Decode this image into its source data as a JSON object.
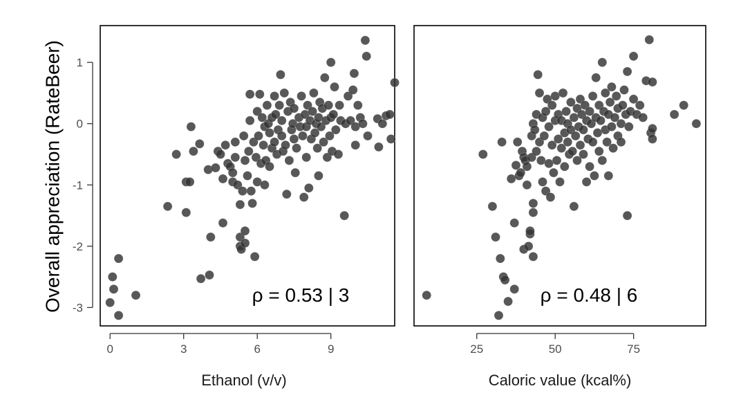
{
  "chart_data": [
    {
      "type": "scatter",
      "xlabel": "Ethanol (v/v)",
      "ylabel": "Overall appreciation (RateBeer)",
      "annotation": "ρ = 0.53 | 3",
      "xlim": [
        -0.4,
        11.6
      ],
      "ylim": [
        -3.3,
        1.6
      ],
      "xticks": [
        0,
        3,
        6,
        9
      ],
      "xtick_labels": [
        "0",
        "3",
        "6",
        "9"
      ],
      "yticks": [
        -3,
        -2,
        -1,
        0,
        1
      ],
      "ytick_labels": [
        "-3",
        "-2",
        "-1",
        "0",
        "1"
      ],
      "grid": false,
      "points": [
        [
          0.0,
          -2.92
        ],
        [
          0.1,
          -2.5
        ],
        [
          0.15,
          -2.7
        ],
        [
          0.35,
          -3.13
        ],
        [
          0.35,
          -2.2
        ],
        [
          1.05,
          -2.8
        ],
        [
          2.35,
          -1.35
        ],
        [
          2.7,
          -0.5
        ],
        [
          3.1,
          -0.95
        ],
        [
          3.1,
          -1.45
        ],
        [
          3.25,
          -0.95
        ],
        [
          3.3,
          -0.05
        ],
        [
          3.4,
          -0.45
        ],
        [
          3.65,
          -0.33
        ],
        [
          3.7,
          -2.53
        ],
        [
          4.0,
          -0.75
        ],
        [
          4.1,
          -1.85
        ],
        [
          4.05,
          -2.47
        ],
        [
          4.3,
          -0.72
        ],
        [
          4.4,
          -0.45
        ],
        [
          4.5,
          -0.5
        ],
        [
          4.6,
          -0.9
        ],
        [
          4.6,
          -1.62
        ],
        [
          4.7,
          -0.35
        ],
        [
          4.8,
          -0.65
        ],
        [
          4.9,
          -0.7
        ],
        [
          5.0,
          -0.8
        ],
        [
          5.0,
          -0.95
        ],
        [
          5.1,
          -0.55
        ],
        [
          5.1,
          -0.3
        ],
        [
          5.2,
          -1.0
        ],
        [
          5.3,
          -1.32
        ],
        [
          5.3,
          -1.85
        ],
        [
          5.3,
          -2.0
        ],
        [
          5.35,
          -2.05
        ],
        [
          5.4,
          -1.1
        ],
        [
          5.45,
          -0.2
        ],
        [
          5.5,
          -0.6
        ],
        [
          5.5,
          -1.75
        ],
        [
          5.5,
          -1.95
        ],
        [
          5.6,
          -0.85
        ],
        [
          5.65,
          -0.45
        ],
        [
          5.7,
          0.48
        ],
        [
          5.7,
          0.05
        ],
        [
          5.75,
          -1.1
        ],
        [
          5.8,
          -1.3
        ],
        [
          5.85,
          -0.3
        ],
        [
          5.9,
          -2.17
        ],
        [
          5.95,
          -0.55
        ],
        [
          6.0,
          0.2
        ],
        [
          6.0,
          -0.95
        ],
        [
          6.05,
          -0.2
        ],
        [
          6.1,
          0.48
        ],
        [
          6.15,
          -0.65
        ],
        [
          6.2,
          0.1
        ],
        [
          6.25,
          -0.35
        ],
        [
          6.3,
          -1.0
        ],
        [
          6.3,
          -0.05
        ],
        [
          6.35,
          -0.6
        ],
        [
          6.4,
          0.3
        ],
        [
          6.45,
          0.0
        ],
        [
          6.5,
          -0.15
        ],
        [
          6.5,
          -0.7
        ],
        [
          6.6,
          0.1
        ],
        [
          6.6,
          -0.4
        ],
        [
          6.7,
          0.45
        ],
        [
          6.7,
          -0.3
        ],
        [
          6.75,
          0.15
        ],
        [
          6.8,
          -0.5
        ],
        [
          6.85,
          -0.1
        ],
        [
          6.9,
          0.3
        ],
        [
          6.95,
          0.8
        ],
        [
          7.0,
          0.05
        ],
        [
          7.0,
          -0.2
        ],
        [
          7.05,
          -0.45
        ],
        [
          7.1,
          0.5
        ],
        [
          7.15,
          -0.35
        ],
        [
          7.2,
          -1.15
        ],
        [
          7.25,
          0.2
        ],
        [
          7.3,
          -0.6
        ],
        [
          7.35,
          0.35
        ],
        [
          7.4,
          -0.1
        ],
        [
          7.45,
          0.0
        ],
        [
          7.5,
          -0.25
        ],
        [
          7.5,
          0.25
        ],
        [
          7.55,
          -0.8
        ],
        [
          7.6,
          -0.4
        ],
        [
          7.7,
          0.1
        ],
        [
          7.75,
          -0.05
        ],
        [
          7.8,
          0.45
        ],
        [
          7.85,
          -0.2
        ],
        [
          7.9,
          -1.2
        ],
        [
          7.95,
          0.15
        ],
        [
          8.0,
          -0.55
        ],
        [
          8.0,
          -0.05
        ],
        [
          8.05,
          0.3
        ],
        [
          8.1,
          -1.05
        ],
        [
          8.15,
          0.05
        ],
        [
          8.2,
          -0.25
        ],
        [
          8.25,
          0.2
        ],
        [
          8.3,
          0.5
        ],
        [
          8.35,
          -0.15
        ],
        [
          8.4,
          0.0
        ],
        [
          8.45,
          -0.4
        ],
        [
          8.5,
          -0.85
        ],
        [
          8.5,
          0.1
        ],
        [
          8.55,
          0.35
        ],
        [
          8.6,
          -0.05
        ],
        [
          8.65,
          0.25
        ],
        [
          8.7,
          -0.3
        ],
        [
          8.75,
          0.75
        ],
        [
          8.8,
          0.05
        ],
        [
          8.85,
          -0.55
        ],
        [
          8.9,
          0.3
        ],
        [
          8.95,
          -0.2
        ],
        [
          9.0,
          0.1
        ],
        [
          9.0,
          1.0
        ],
        [
          9.05,
          -0.45
        ],
        [
          9.1,
          0.15
        ],
        [
          9.15,
          0.6
        ],
        [
          9.2,
          -0.1
        ],
        [
          9.3,
          -0.5
        ],
        [
          9.35,
          0.3
        ],
        [
          9.4,
          0.05
        ],
        [
          9.55,
          -1.5
        ],
        [
          9.6,
          0.0
        ],
        [
          9.7,
          0.45
        ],
        [
          9.8,
          0.05
        ],
        [
          9.9,
          0.55
        ],
        [
          9.95,
          0.82
        ],
        [
          10.0,
          -0.05
        ],
        [
          10.0,
          -0.35
        ],
        [
          10.1,
          0.3
        ],
        [
          10.2,
          0.1
        ],
        [
          10.3,
          0.0
        ],
        [
          10.4,
          1.36
        ],
        [
          10.45,
          1.1
        ],
        [
          10.5,
          -0.2
        ],
        [
          10.9,
          0.08
        ],
        [
          10.95,
          -0.38
        ],
        [
          11.1,
          0.0
        ],
        [
          11.25,
          0.13
        ],
        [
          11.4,
          0.15
        ],
        [
          11.45,
          -0.25
        ],
        [
          11.6,
          0.67
        ]
      ]
    },
    {
      "type": "scatter",
      "xlabel": "Caloric value (kcal%)",
      "ylabel": "",
      "annotation": "ρ = 0.48 | 6",
      "xlim": [
        5,
        98
      ],
      "ylim": [
        -3.3,
        1.6
      ],
      "xticks": [
        25,
        50,
        75
      ],
      "xtick_labels": [
        "25",
        "50",
        "75"
      ],
      "yticks": [],
      "ytick_labels": [],
      "grid": false,
      "points": [
        [
          9,
          -2.8
        ],
        [
          27,
          -0.5
        ],
        [
          30,
          -1.35
        ],
        [
          31,
          -1.85
        ],
        [
          32,
          -3.13
        ],
        [
          32.5,
          -2.2
        ],
        [
          33,
          -0.3
        ],
        [
          33.5,
          -2.5
        ],
        [
          34,
          -2.55
        ],
        [
          35,
          -2.9
        ],
        [
          36,
          -0.9
        ],
        [
          37,
          -1.62
        ],
        [
          37,
          -2.7
        ],
        [
          37.5,
          -0.68
        ],
        [
          38,
          -0.3
        ],
        [
          38.5,
          -0.85
        ],
        [
          39,
          -0.8
        ],
        [
          39.5,
          -0.45
        ],
        [
          40,
          -2.05
        ],
        [
          40,
          -0.55
        ],
        [
          40.5,
          -0.6
        ],
        [
          41,
          -1.0
        ],
        [
          41,
          -0.7
        ],
        [
          41.5,
          -2.0
        ],
        [
          42,
          -1.8
        ],
        [
          42,
          -1.75
        ],
        [
          42.5,
          -0.2
        ],
        [
          42.5,
          -0.55
        ],
        [
          43,
          -1.3
        ],
        [
          43,
          -1.45
        ],
        [
          43,
          -2.17
        ],
        [
          43,
          0.0
        ],
        [
          43.5,
          -0.1
        ],
        [
          44,
          -0.45
        ],
        [
          44,
          0.15
        ],
        [
          44.5,
          0.8
        ],
        [
          45,
          -0.3
        ],
        [
          45,
          0.5
        ],
        [
          45.5,
          -0.6
        ],
        [
          46,
          0.1
        ],
        [
          46,
          -0.95
        ],
        [
          46.5,
          -0.2
        ],
        [
          47,
          -1.1
        ],
        [
          47,
          0.2
        ],
        [
          47.5,
          0.4
        ],
        [
          48,
          -0.65
        ],
        [
          48,
          -0.05
        ],
        [
          48.5,
          -1.2
        ],
        [
          49,
          0.3
        ],
        [
          49,
          -0.35
        ],
        [
          49.5,
          -0.8
        ],
        [
          50,
          0.05
        ],
        [
          50,
          0.45
        ],
        [
          50.5,
          -0.6
        ],
        [
          51,
          -0.25
        ],
        [
          51,
          0.15
        ],
        [
          51.5,
          -0.95
        ],
        [
          52,
          0.05
        ],
        [
          52,
          -0.4
        ],
        [
          52.5,
          0.5
        ],
        [
          53,
          -0.15
        ],
        [
          53,
          -0.7
        ],
        [
          53.5,
          0.2
        ],
        [
          54,
          -0.3
        ],
        [
          54,
          0.0
        ],
        [
          54.5,
          -0.5
        ],
        [
          55,
          0.35
        ],
        [
          55,
          -0.1
        ],
        [
          55.5,
          -0.45
        ],
        [
          56,
          -1.35
        ],
        [
          56,
          0.1
        ],
        [
          56.5,
          -0.2
        ],
        [
          57,
          0.25
        ],
        [
          57,
          -0.6
        ],
        [
          57.5,
          -0.05
        ],
        [
          58,
          0.4
        ],
        [
          58,
          -0.35
        ],
        [
          58.5,
          0.15
        ],
        [
          59,
          -0.1
        ],
        [
          59,
          -0.5
        ],
        [
          59.5,
          0.3
        ],
        [
          60,
          -0.95
        ],
        [
          60,
          0.05
        ],
        [
          60.5,
          -0.25
        ],
        [
          61,
          0.2
        ],
        [
          61,
          -0.7
        ],
        [
          61.5,
          0.0
        ],
        [
          62,
          0.45
        ],
        [
          62,
          -0.3
        ],
        [
          62.5,
          -0.85
        ],
        [
          63,
          0.1
        ],
        [
          63,
          0.75
        ],
        [
          63.5,
          -0.15
        ],
        [
          64,
          0.3
        ],
        [
          64,
          -0.45
        ],
        [
          64.5,
          0.05
        ],
        [
          65,
          -0.6
        ],
        [
          65,
          1.0
        ],
        [
          65.5,
          0.2
        ],
        [
          66,
          -0.1
        ],
        [
          66,
          0.5
        ],
        [
          66.5,
          -0.3
        ],
        [
          67,
          0.15
        ],
        [
          67,
          -0.85
        ],
        [
          67.5,
          0.35
        ],
        [
          68,
          -0.05
        ],
        [
          68,
          0.6
        ],
        [
          68.5,
          -0.4
        ],
        [
          69,
          0.1
        ],
        [
          69.5,
          0.45
        ],
        [
          70,
          -0.2
        ],
        [
          70,
          0.25
        ],
        [
          71,
          0.0
        ],
        [
          71,
          -0.3
        ],
        [
          71.5,
          0.3
        ],
        [
          72,
          0.55
        ],
        [
          72.5,
          0.15
        ],
        [
          73,
          -1.5
        ],
        [
          73,
          0.85
        ],
        [
          73.5,
          -0.05
        ],
        [
          74,
          0.2
        ],
        [
          75,
          1.1
        ],
        [
          75,
          0.4
        ],
        [
          76,
          0.15
        ],
        [
          77,
          0.3
        ],
        [
          78,
          0.1
        ],
        [
          79,
          0.7
        ],
        [
          80,
          1.37
        ],
        [
          80.5,
          -0.15
        ],
        [
          81,
          0.68
        ],
        [
          81,
          -0.08
        ],
        [
          81,
          -0.25
        ],
        [
          88,
          0.15
        ],
        [
          91,
          0.3
        ],
        [
          95,
          0.0
        ]
      ]
    }
  ]
}
